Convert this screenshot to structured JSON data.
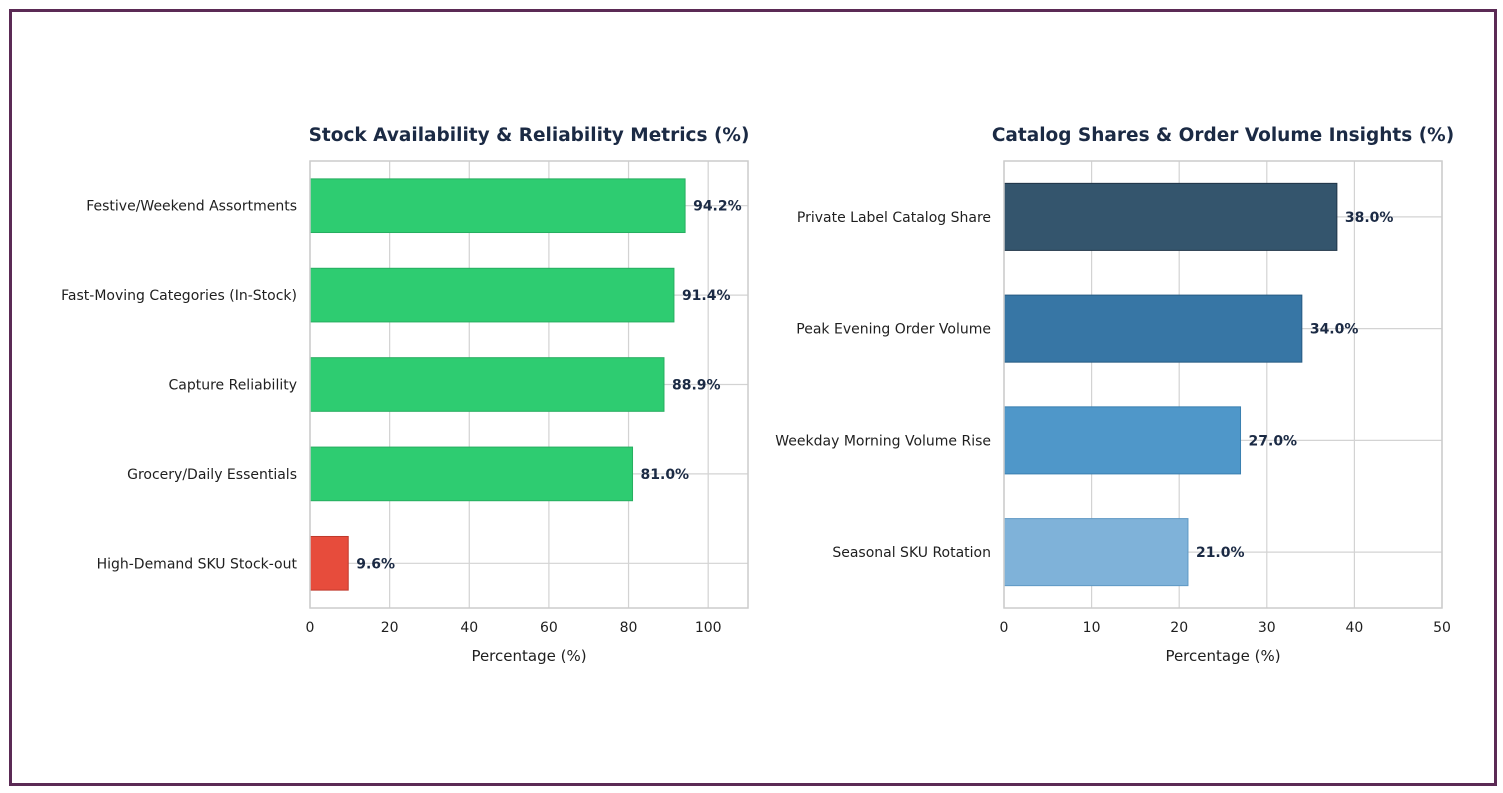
{
  "chart_data": [
    {
      "type": "bar",
      "orientation": "horizontal",
      "title": "Stock Availability & Reliability Metrics (%)",
      "xlabel": "Percentage (%)",
      "ylabel": "",
      "xlim": [
        0,
        110
      ],
      "xticks": [
        0,
        20,
        40,
        60,
        80,
        100
      ],
      "xtick_labels": [
        "0",
        "20",
        "40",
        "60",
        "80",
        "100"
      ],
      "grid": true,
      "categories": [
        "Festive/Weekend Assortments",
        "Fast-Moving Categories (In-Stock)",
        "Capture Reliability",
        "Grocery/Daily Essentials",
        "High-Demand SKU Stock-out"
      ],
      "values": [
        94.2,
        91.4,
        88.9,
        81.0,
        9.6
      ],
      "value_labels": [
        "94.2%",
        "91.4%",
        "88.9%",
        "81.0%",
        "9.6%"
      ],
      "colors": [
        "#2ecc71",
        "#2ecc71",
        "#2ecc71",
        "#2ecc71",
        "#e74c3c"
      ],
      "edge_colors": [
        "#27ae60",
        "#27ae60",
        "#27ae60",
        "#27ae60",
        "#c0392b"
      ]
    },
    {
      "type": "bar",
      "orientation": "horizontal",
      "title": "Catalog Shares & Order Volume Insights (%)",
      "xlabel": "Percentage (%)",
      "ylabel": "",
      "xlim": [
        0,
        50
      ],
      "xticks": [
        0,
        10,
        20,
        30,
        40,
        50
      ],
      "xtick_labels": [
        "0",
        "10",
        "20",
        "30",
        "40",
        "50"
      ],
      "grid": true,
      "categories": [
        "Private Label Catalog Share",
        "Peak Evening Order Volume",
        "Weekday Morning Volume Rise",
        "Seasonal SKU Rotation"
      ],
      "values": [
        38.0,
        34.0,
        27.0,
        21.0
      ],
      "value_labels": [
        "38.0%",
        "34.0%",
        "27.0%",
        "21.0%"
      ],
      "colors": [
        "#34556d",
        "#3776a5",
        "#4f97c9",
        "#7fb2d9"
      ],
      "edge_colors": [
        "#1f3447",
        "#265a82",
        "#3a7fb0",
        "#5e98c4"
      ]
    }
  ],
  "style": {
    "frame_color": "#5b2a55",
    "grid_color": "#d3d3d3",
    "spine_color": "#cccccc",
    "title_color": "#1b2a44",
    "value_label_color": "#1b2a44"
  }
}
